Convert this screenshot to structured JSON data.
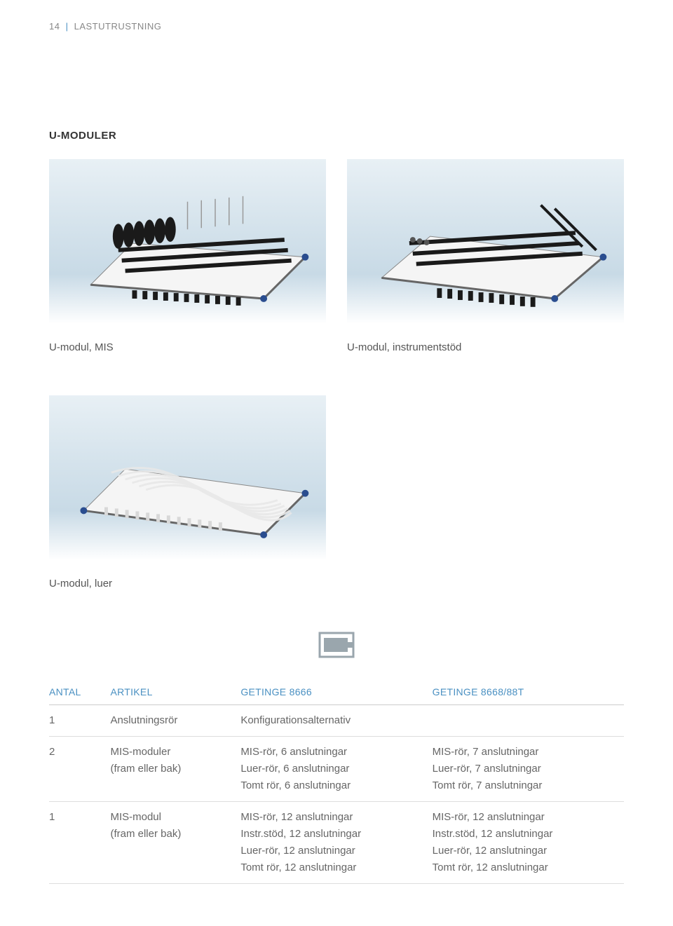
{
  "header": {
    "page_num": "14",
    "title": "LASTUTRUSTNING"
  },
  "colors": {
    "accent": "#4a90c2",
    "text_muted": "#888",
    "text_body": "#666",
    "rule": "#ddd",
    "bg_top": "#e8f0f5",
    "bg_bottom": "#ffffff"
  },
  "section": {
    "title": "U-MODULER",
    "images": {
      "row1": [
        {
          "caption": "U-modul, MIS"
        },
        {
          "caption": "U-modul, instrumentstöd"
        }
      ],
      "row2": [
        {
          "caption": "U-modul, luer"
        }
      ]
    }
  },
  "table": {
    "icon": "slide-tray",
    "columns": [
      "ANTAL",
      "ARTIKEL",
      "GETINGE 8666",
      "GETINGE 8668/88T"
    ],
    "rows": [
      {
        "antal": "1",
        "artikel": [
          "Anslutningsrör"
        ],
        "c3": [
          "Konfigurationsalternativ"
        ],
        "c4": [
          ""
        ]
      },
      {
        "antal": "2",
        "artikel": [
          "MIS-moduler",
          "(fram eller bak)"
        ],
        "c3": [
          "MIS-rör, 6 anslutningar",
          "Luer-rör, 6 anslutningar",
          "Tomt rör, 6 anslutningar"
        ],
        "c4": [
          "MIS-rör, 7 anslutningar",
          "Luer-rör, 7 anslutningar",
          "Tomt rör, 7 anslutningar"
        ]
      },
      {
        "antal": "1",
        "artikel": [
          "MIS-modul",
          "(fram eller bak)"
        ],
        "c3": [
          "MIS-rör, 12 anslutningar",
          "Instr.stöd, 12 anslutningar",
          "Luer-rör, 12 anslutningar",
          "Tomt rör, 12 anslutningar"
        ],
        "c4": [
          "MIS-rör, 12 anslutningar",
          "Instr.stöd, 12 anslutningar",
          "Luer-rör, 12 anslutningar",
          "Tomt rör, 12 anslutningar"
        ]
      }
    ]
  }
}
